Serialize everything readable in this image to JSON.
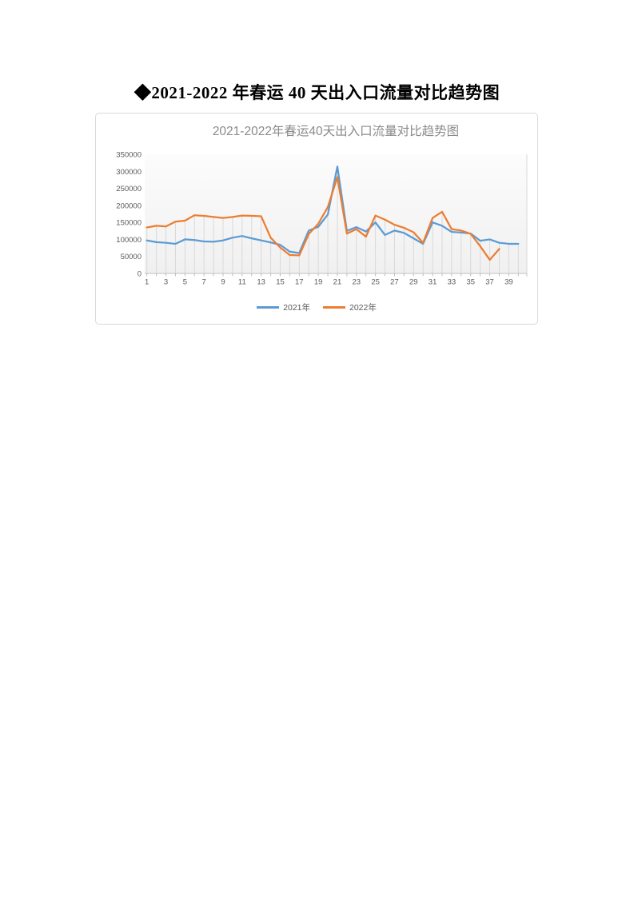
{
  "page": {
    "doc_title": "◆2021-2022 年春运 40 天出入口流量对比趋势图"
  },
  "chart": {
    "title": "2021-2022年春运40天出入口流量对比趋势图",
    "legend": [
      {
        "label": "2021年",
        "color": "#5B9BD5"
      },
      {
        "label": "2022年",
        "color": "#ED7D31"
      }
    ]
  },
  "chart_data": {
    "type": "line",
    "title": "2021-2022年春运40天出入口流量对比趋势图",
    "xlabel": "",
    "ylabel": "",
    "x": [
      1,
      2,
      3,
      4,
      5,
      6,
      7,
      8,
      9,
      10,
      11,
      12,
      13,
      14,
      15,
      16,
      17,
      18,
      19,
      20,
      21,
      22,
      23,
      24,
      25,
      26,
      27,
      28,
      29,
      30,
      31,
      32,
      33,
      34,
      35,
      36,
      37,
      38,
      39,
      40
    ],
    "x_tick_labels": [
      1,
      3,
      5,
      7,
      9,
      11,
      13,
      15,
      17,
      19,
      21,
      23,
      25,
      27,
      29,
      31,
      33,
      35,
      37,
      39
    ],
    "series": [
      {
        "name": "2021年",
        "color": "#5B9BD5",
        "values": [
          97000,
          92000,
          90000,
          87000,
          100000,
          98000,
          94000,
          93000,
          97000,
          105000,
          110000,
          103000,
          97000,
          91000,
          84000,
          64000,
          60000,
          126000,
          137000,
          173000,
          314000,
          125000,
          136000,
          123000,
          150000,
          113000,
          126000,
          119000,
          103000,
          87000,
          150000,
          140000,
          122000,
          120000,
          117000,
          96000,
          100000,
          90000,
          87000,
          87000
        ]
      },
      {
        "name": "2022年",
        "color": "#ED7D31",
        "values": [
          135000,
          140000,
          138000,
          152000,
          155000,
          171000,
          169000,
          166000,
          163000,
          166000,
          170000,
          169000,
          168000,
          105000,
          76000,
          54000,
          53000,
          116000,
          146000,
          195000,
          283000,
          117000,
          130000,
          108000,
          170000,
          158000,
          143000,
          134000,
          121000,
          90000,
          163000,
          181000,
          130000,
          126000,
          116000,
          80000,
          40000,
          72000
        ]
      }
    ],
    "ylim": [
      0,
      350000
    ],
    "y_ticks": [
      0,
      50000,
      100000,
      150000,
      200000,
      250000,
      300000,
      350000
    ],
    "grid": "vertical drop lines per day, no horizontal gridlines",
    "legend_position": "bottom"
  },
  "colors": {
    "series_2021": "#5B9BD5",
    "series_2022": "#ED7D31",
    "chart_title_text": "#8A8A8A",
    "axis_text": "#595959",
    "drop_line": "#D9D9D9",
    "axis_line": "#BFBFBF",
    "chart_border": "#D9D9D9"
  }
}
